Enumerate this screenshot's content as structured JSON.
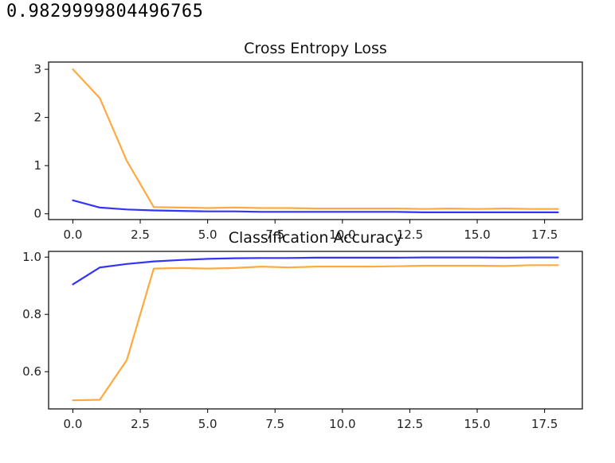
{
  "output_text": "0.9829999804496765",
  "colors": {
    "train": "#3333ff",
    "test": "#ffaa40",
    "axis": "#000000"
  },
  "chart_data": [
    {
      "type": "line",
      "title": "Cross Entropy Loss",
      "x": [
        0,
        1,
        2,
        3,
        4,
        5,
        6,
        7,
        8,
        9,
        10,
        11,
        12,
        13,
        14,
        15,
        16,
        17,
        18
      ],
      "xlim": [
        -0.9,
        18.9
      ],
      "ylim": [
        -0.12,
        3.15
      ],
      "xticks": [
        0,
        2.5,
        5,
        7.5,
        10,
        12.5,
        15,
        17.5
      ],
      "xtick_labels": [
        "0.0",
        "2.5",
        "5.0",
        "7.5",
        "10.0",
        "12.5",
        "15.0",
        "17.5"
      ],
      "yticks": [
        0,
        1,
        2,
        3
      ],
      "ytick_labels": [
        "0",
        "1",
        "2",
        "3"
      ],
      "series": [
        {
          "color": "#ffaa40",
          "values": [
            3.0,
            2.4,
            1.1,
            0.14,
            0.13,
            0.12,
            0.13,
            0.12,
            0.12,
            0.11,
            0.11,
            0.11,
            0.11,
            0.1,
            0.11,
            0.1,
            0.11,
            0.1,
            0.1
          ]
        },
        {
          "color": "#3333ff",
          "values": [
            0.28,
            0.13,
            0.09,
            0.07,
            0.06,
            0.05,
            0.05,
            0.04,
            0.04,
            0.04,
            0.04,
            0.04,
            0.04,
            0.03,
            0.03,
            0.03,
            0.03,
            0.03,
            0.03
          ]
        }
      ]
    },
    {
      "type": "line",
      "title": "Classification Accuracy",
      "x": [
        0,
        1,
        2,
        3,
        4,
        5,
        6,
        7,
        8,
        9,
        10,
        11,
        12,
        13,
        14,
        15,
        16,
        17,
        18
      ],
      "xlim": [
        -0.9,
        18.9
      ],
      "ylim": [
        0.47,
        1.02
      ],
      "xticks": [
        0,
        2.5,
        5,
        7.5,
        10,
        12.5,
        15,
        17.5
      ],
      "xtick_labels": [
        "0.0",
        "2.5",
        "5.0",
        "7.5",
        "10.0",
        "12.5",
        "15.0",
        "17.5"
      ],
      "yticks": [
        0.6,
        0.8,
        1.0
      ],
      "ytick_labels": [
        "0.6",
        "0.8",
        "1.0"
      ],
      "series": [
        {
          "color": "#ffaa40",
          "values": [
            0.5,
            0.502,
            0.64,
            0.96,
            0.962,
            0.96,
            0.962,
            0.967,
            0.964,
            0.967,
            0.967,
            0.967,
            0.968,
            0.97,
            0.97,
            0.97,
            0.969,
            0.972,
            0.972
          ]
        },
        {
          "color": "#3333ff",
          "values": [
            0.905,
            0.964,
            0.976,
            0.985,
            0.99,
            0.994,
            0.996,
            0.997,
            0.997,
            0.998,
            0.998,
            0.998,
            0.998,
            0.999,
            0.999,
            0.999,
            0.998,
            0.999,
            0.999
          ]
        }
      ]
    }
  ]
}
